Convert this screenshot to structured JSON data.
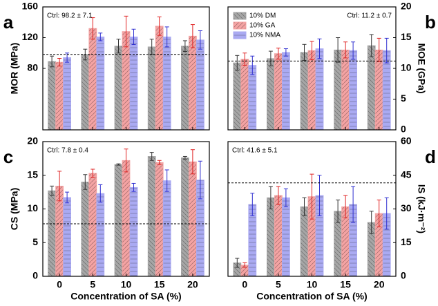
{
  "chart_data": [
    {
      "type": "bar",
      "panel_label": "a",
      "ylabel": "MOR (MPa)",
      "ctrl_text": "Ctrl: 98.2 ± 7.1",
      "reference": 98.2,
      "ylim": [
        0,
        160
      ],
      "yticks": [
        80,
        120,
        160
      ],
      "axis_side": "left",
      "categories": [
        null,
        null,
        null,
        null,
        null
      ],
      "series": [
        {
          "color": "#a6a6a6",
          "error_color": "#333333",
          "values": [
            89,
            98,
            109,
            108,
            109
          ],
          "errors": [
            7,
            7,
            9,
            10,
            7
          ]
        },
        {
          "color": "#f4a3a3",
          "error_color": "#e02020",
          "values": [
            88,
            132,
            128,
            135,
            122
          ],
          "errors": [
            5,
            14,
            20,
            12,
            15
          ]
        },
        {
          "color": "#aaaaf2",
          "error_color": "#3030d0",
          "values": [
            94,
            121,
            121,
            121,
            117
          ],
          "errors": [
            6,
            5,
            10,
            13,
            12
          ]
        }
      ]
    },
    {
      "type": "bar",
      "panel_label": "b",
      "ylabel": "MOE (GPa)",
      "ctrl_text": "Ctrl: 11.2 ± 0.7",
      "reference": 11.2,
      "ylim": [
        0,
        20
      ],
      "yticks": [
        0,
        5,
        10,
        15,
        20
      ],
      "axis_side": "right",
      "legend": "upper left",
      "categories": [
        null,
        null,
        null,
        null,
        null
      ],
      "series": [
        {
          "name": "10% DM",
          "color": "#a6a6a6",
          "error_color": "#333333",
          "values": [
            10.9,
            11.6,
            12.6,
            13.0,
            13.7
          ],
          "errors": [
            1.2,
            1.2,
            1.3,
            2.0,
            1.8
          ]
        },
        {
          "name": "10% GA",
          "color": "#f4a3a3",
          "error_color": "#e02020",
          "values": [
            11.5,
            12.4,
            12.9,
            13.0,
            13.0
          ],
          "errors": [
            1.0,
            0.9,
            1.5,
            1.3,
            1.9
          ]
        },
        {
          "name": "10% NMA",
          "color": "#aaaaf2",
          "error_color": "#3030d0",
          "values": [
            10.5,
            12.6,
            13.2,
            12.9,
            12.9
          ],
          "errors": [
            1.5,
            0.6,
            1.6,
            1.4,
            2.0
          ]
        }
      ]
    },
    {
      "type": "bar",
      "panel_label": "c",
      "ylabel": "CS (MPa)",
      "xlabel": "Concentration of SA (%)",
      "ctrl_text": "Ctrl: 7.8 ± 0.4",
      "reference": 7.8,
      "ylim": [
        0,
        20
      ],
      "yticks": [
        0,
        5,
        10,
        15,
        20
      ],
      "axis_side": "left",
      "categories": [
        "0",
        "5",
        "10",
        "15",
        "20"
      ],
      "series": [
        {
          "color": "#a6a6a6",
          "error_color": "#333333",
          "values": [
            12.7,
            14.0,
            16.6,
            17.8,
            17.6
          ],
          "errors": [
            0.7,
            1.1,
            0.1,
            0.6,
            0.2
          ]
        },
        {
          "color": "#f4a3a3",
          "error_color": "#e02020",
          "values": [
            13.4,
            15.3,
            17.2,
            16.9,
            17.0
          ],
          "errors": [
            2.2,
            0.6,
            1.7,
            0.3,
            1.8
          ]
        },
        {
          "color": "#aaaaf2",
          "error_color": "#3030d0",
          "values": [
            11.7,
            12.3,
            13.2,
            14.2,
            14.3
          ],
          "errors": [
            0.8,
            1.3,
            0.6,
            1.6,
            2.8
          ]
        }
      ]
    },
    {
      "type": "bar",
      "panel_label": "d",
      "ylabel": "IS (kJ·m⁻²)",
      "xlabel": "Concentration of SA (%)",
      "ctrl_text": "Ctrl: 41.6 ± 5.1",
      "reference": 41.6,
      "ylim": [
        0,
        60
      ],
      "yticks": [
        0,
        15,
        30,
        45,
        60
      ],
      "axis_side": "right",
      "categories": [
        "0",
        "5",
        "10",
        "15",
        "20"
      ],
      "series": [
        {
          "color": "#a6a6a6",
          "error_color": "#333333",
          "values": [
            6,
            35,
            31,
            29,
            24
          ],
          "errors": [
            2,
            5,
            4,
            5,
            5
          ]
        },
        {
          "color": "#f4a3a3",
          "error_color": "#e02020",
          "values": [
            5,
            36,
            35.5,
            31,
            28
          ],
          "errors": [
            1,
            4,
            10,
            5,
            6
          ]
        },
        {
          "color": "#aaaaf2",
          "error_color": "#3030d0",
          "values": [
            32,
            35,
            36,
            32,
            28
          ],
          "errors": [
            5,
            4,
            9,
            8,
            7
          ]
        }
      ]
    }
  ]
}
